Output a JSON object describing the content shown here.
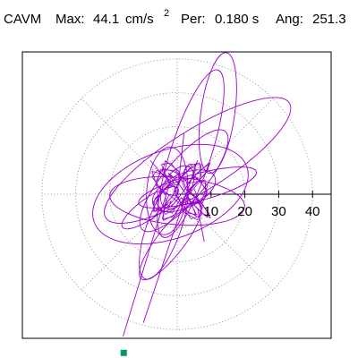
{
  "header": {
    "name": "CAVM",
    "max_label": "Max:",
    "max_value": "44.1",
    "max_unit": "cm/s",
    "max_unit_exp": "2",
    "per_label": "Per:",
    "per_value": "0.180 s",
    "ang_label": "Ang:",
    "ang_value": "251.3"
  },
  "chart_data": {
    "type": "scatter",
    "title": "",
    "xlabel": "",
    "ylabel": "",
    "tick_labels": [
      "10",
      "20",
      "30",
      "40"
    ],
    "radial_rings": [
      10,
      20,
      30,
      40
    ],
    "axis_range": [
      -47,
      47
    ],
    "grid": true,
    "peak_value": 44.1,
    "peak_angle_deg": 251.3,
    "orbit_colour": "#9900cc",
    "marker_colour": "#009966",
    "grid_colour": "#808080",
    "loops": [
      {
        "cx": 6,
        "cy": 10,
        "rx": 32,
        "ry": 9,
        "rot": 32
      },
      {
        "cx": 4,
        "cy": 12,
        "rx": 26,
        "ry": 6,
        "rot": 72
      },
      {
        "cx": -2,
        "cy": 0,
        "rx": 24,
        "ry": 13,
        "rot": 20
      },
      {
        "cx": 2,
        "cy": 4,
        "rx": 19,
        "ry": 6,
        "rot": 50
      },
      {
        "cx": 0,
        "cy": -2,
        "rx": 20,
        "ry": 7,
        "rot": -5
      },
      {
        "cx": -3,
        "cy": 1,
        "rx": 13,
        "ry": 6,
        "rot": 85
      },
      {
        "cx": 2,
        "cy": 1,
        "rx": 10,
        "ry": 5,
        "rot": 25
      },
      {
        "cx": 0,
        "cy": 2,
        "rx": 7,
        "ry": 4,
        "rot": 60
      },
      {
        "cx": 12,
        "cy": 24,
        "rx": 18,
        "ry": 5,
        "rot": 82
      },
      {
        "cx": -4,
        "cy": -10,
        "rx": 16,
        "ry": 5,
        "rot": 70
      },
      {
        "cx": -2,
        "cy": -14,
        "rx": 14,
        "ry": 4,
        "rot": 52
      },
      {
        "cx": 6,
        "cy": 2,
        "rx": 18,
        "ry": 4,
        "rot": 15
      },
      {
        "cx": -8,
        "cy": -4,
        "rx": 10,
        "ry": 3,
        "rot": 35
      }
    ],
    "strokes": [
      {
        "x1": -16,
        "y1": -42,
        "x2": -2,
        "y2": 4
      },
      {
        "x1": -10,
        "y1": -38,
        "x2": 6,
        "y2": 10
      },
      {
        "x1": 2,
        "y1": 18,
        "x2": 0,
        "y2": 0
      },
      {
        "x1": 6,
        "y1": -4,
        "x2": 8,
        "y2": -14
      }
    ],
    "start_point": {
      "x": -15.8,
      "y": -46.9
    }
  }
}
